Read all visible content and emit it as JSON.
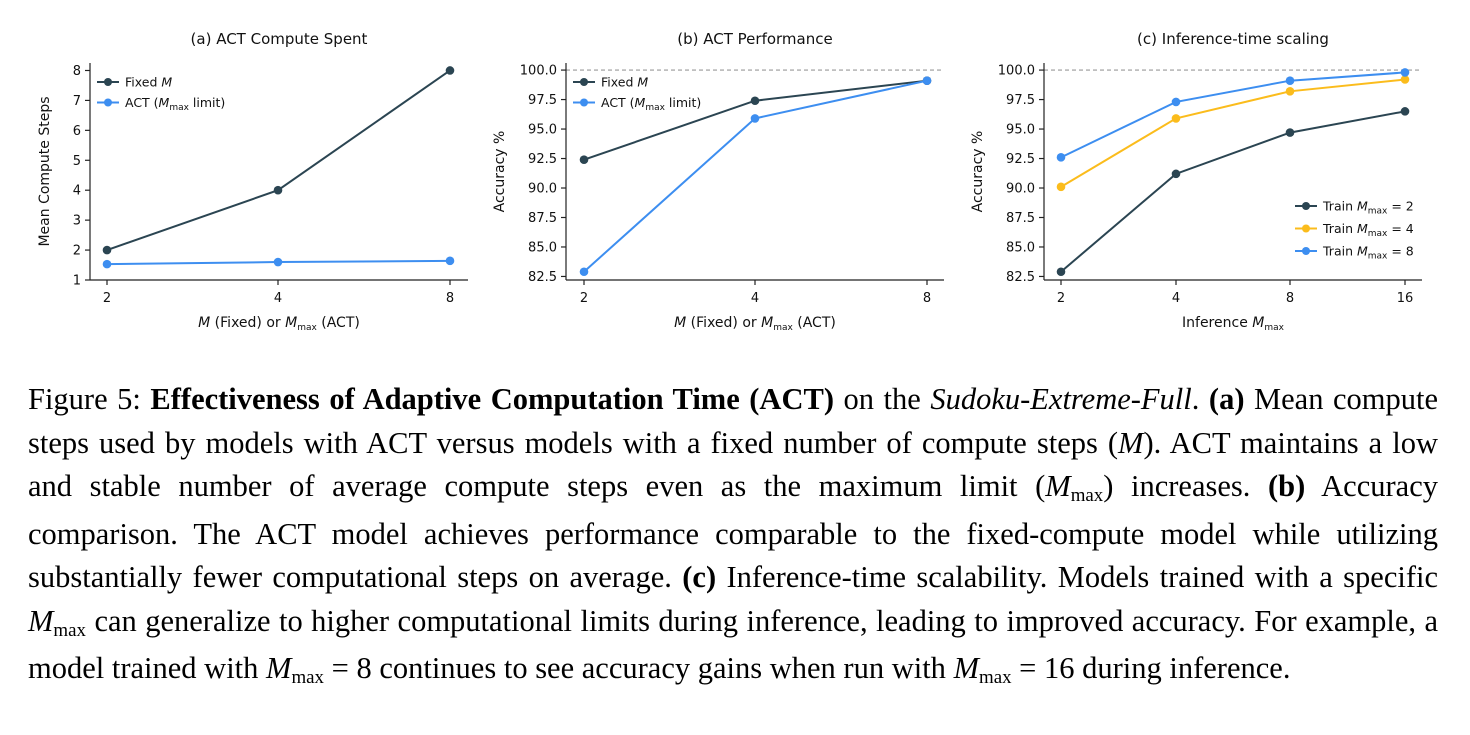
{
  "chart_data": [
    {
      "type": "line",
      "title": "(a) ACT Compute Spent",
      "xlabel": [
        "M",
        " (Fixed) or ",
        "M",
        "max",
        " (ACT)"
      ],
      "ylabel": "Mean Compute Steps",
      "x_categories": [
        "2",
        "4",
        "8"
      ],
      "y_ticks": [
        "1",
        "2",
        "3",
        "4",
        "5",
        "6",
        "7",
        "8"
      ],
      "ylim": [
        1,
        8.25
      ],
      "reference_line": null,
      "legend_position": "upper-left",
      "series": [
        {
          "name": [
            "Fixed ",
            "M",
            "",
            ""
          ],
          "color": "#2b4552",
          "values": [
            2,
            4,
            8
          ]
        },
        {
          "name": [
            "ACT (",
            "M",
            "max",
            " limit)"
          ],
          "color": "#3d8ef0",
          "values": [
            1.53,
            1.6,
            1.64
          ]
        }
      ]
    },
    {
      "type": "line",
      "title": "(b) ACT Performance",
      "xlabel": [
        "M",
        " (Fixed) or ",
        "M",
        "max",
        " (ACT)"
      ],
      "ylabel": "Accuracy %",
      "x_categories": [
        "2",
        "4",
        "8"
      ],
      "y_ticks": [
        "82.5",
        "85.0",
        "87.5",
        "90.0",
        "92.5",
        "95.0",
        "97.5",
        "100.0"
      ],
      "ylim": [
        82.2,
        100.6
      ],
      "reference_line": 100,
      "legend_position": "upper-left",
      "series": [
        {
          "name": [
            "Fixed ",
            "M",
            "",
            ""
          ],
          "color": "#2b4552",
          "values": [
            92.4,
            97.4,
            99.1
          ]
        },
        {
          "name": [
            "ACT (",
            "M",
            "max",
            " limit)"
          ],
          "color": "#3d8ef0",
          "values": [
            82.9,
            95.9,
            99.1
          ]
        }
      ]
    },
    {
      "type": "line",
      "title": "(c) Inference-time scaling",
      "xlabel": [
        "Inference ",
        "M",
        "max",
        "",
        ""
      ],
      "ylabel": "Accuracy %",
      "x_categories": [
        "2",
        "4",
        "8",
        "16"
      ],
      "y_ticks": [
        "82.5",
        "85.0",
        "87.5",
        "90.0",
        "92.5",
        "95.0",
        "97.5",
        "100.0"
      ],
      "ylim": [
        82.2,
        100.6
      ],
      "reference_line": 100,
      "legend_position": "lower-right",
      "series": [
        {
          "name": [
            "Train ",
            "M",
            "max",
            " = 2"
          ],
          "color": "#2b4552",
          "values": [
            82.9,
            91.2,
            94.7,
            96.5
          ]
        },
        {
          "name": [
            "Train ",
            "M",
            "max",
            " = 4"
          ],
          "color": "#fbbc1c",
          "values": [
            90.1,
            95.9,
            98.2,
            99.2
          ]
        },
        {
          "name": [
            "Train ",
            "M",
            "max",
            " = 8"
          ],
          "color": "#3d8ef0",
          "values": [
            92.6,
            97.3,
            99.1,
            99.8
          ]
        }
      ]
    }
  ],
  "caption": {
    "label": "Figure 5: ",
    "bold_title": "Effectiveness of Adaptive Computation Time (ACT)",
    "on_the": " on the ",
    "dataset": "Sudoku-Extreme-Full",
    "dataset_end": ". ",
    "a_tag": "(a)",
    "a_text_1": " Mean compute steps used by models with ACT versus models with a fixed number of compute steps (",
    "a_m": "M",
    "a_text_2": "). ACT maintains a low and stable number of average compute steps even as the maximum limit (",
    "a_mmax_m": "M",
    "a_mmax_sub": "max",
    "a_text_3": ") increases. ",
    "b_tag": "(b)",
    "b_text": " Accuracy comparison. The ACT model achieves performance comparable to the fixed-compute model while utilizing substantially fewer computational steps on average. ",
    "c_tag": "(c)",
    "c_text_1": " Inference-time scalability. Models trained with a specific ",
    "c_m1": "M",
    "c_sub1": "max",
    "c_text_2": " can generalize to higher computational limits during inference, leading to improved accuracy. For example, a model trained with ",
    "c_m2": "M",
    "c_sub2": "max",
    "c_text_3": " = 8 continues to see accuracy gains when run with ",
    "c_m3": "M",
    "c_sub3": "max",
    "c_text_4": " = 16 during inference."
  }
}
